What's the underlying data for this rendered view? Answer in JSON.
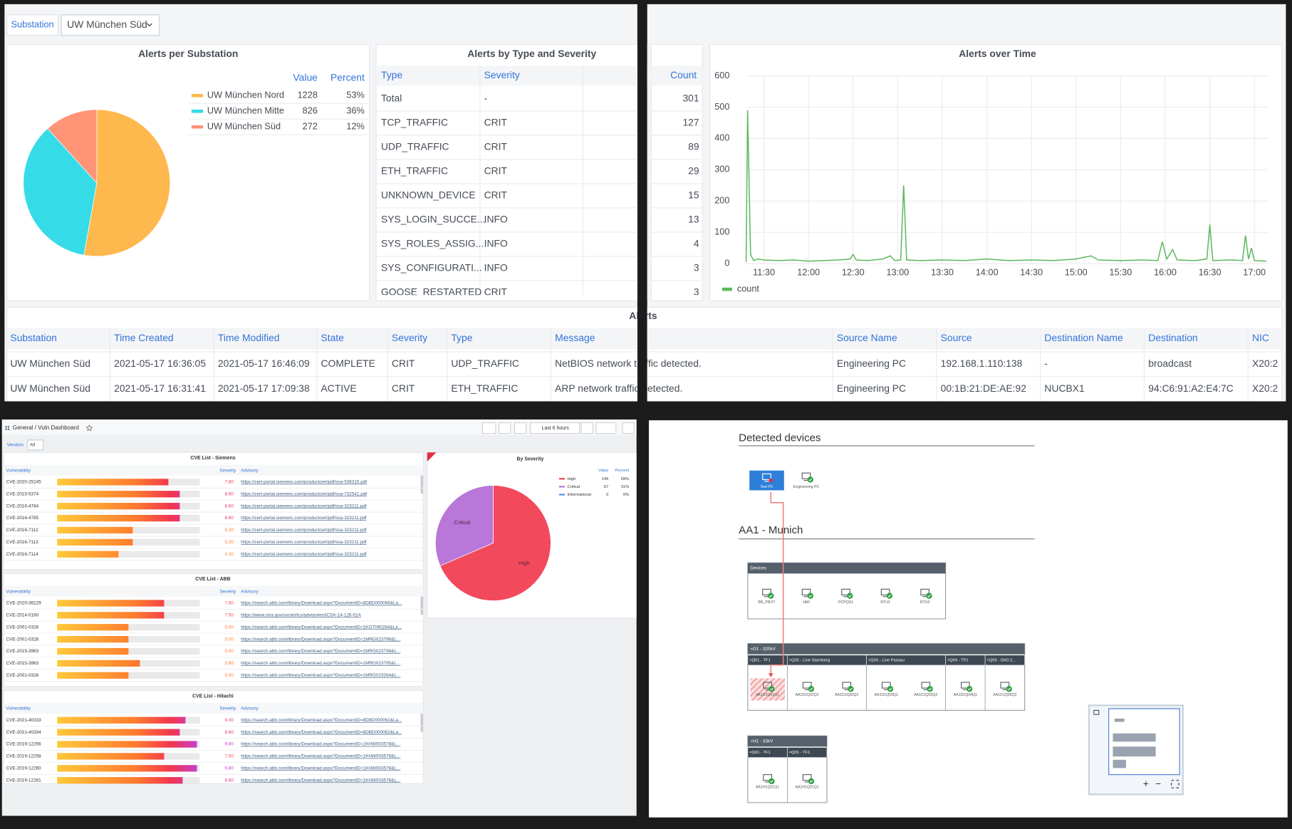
{
  "alerts_screen": {
    "filter": {
      "label": "Substation",
      "value": "UW München Süd"
    },
    "substation_pie": {
      "type": "pie",
      "title": "Alerts per Substation",
      "columns": [
        "Value",
        "Percent"
      ],
      "slices": [
        {
          "name": "UW München Nord",
          "value": 1228,
          "percent": "53%",
          "color": "#ffb84d"
        },
        {
          "name": "UW München Mitte",
          "value": 826,
          "percent": "36%",
          "color": "#36dbe8"
        },
        {
          "name": "UW München Süd",
          "value": 272,
          "percent": "12%",
          "color": "#ff9477"
        }
      ]
    },
    "type_table": {
      "title": "Alerts by Type and Severity",
      "columns": [
        "Type",
        "Severity",
        "Count"
      ],
      "rows": [
        [
          "Total",
          "-",
          301
        ],
        [
          "TCP_TRAFFIC",
          "CRIT",
          127
        ],
        [
          "UDP_TRAFFIC",
          "CRIT",
          89
        ],
        [
          "ETH_TRAFFIC",
          "CRIT",
          29
        ],
        [
          "UNKNOWN_DEVICE",
          "CRIT",
          15
        ],
        [
          "SYS_LOGIN_SUCCE...",
          "INFO",
          13
        ],
        [
          "SYS_ROLES_ASSIG...",
          "INFO",
          4
        ],
        [
          "SYS_CONFIGURATI...",
          "INFO",
          3
        ],
        [
          "GOOSE_RESTARTED",
          "CRIT",
          3
        ]
      ]
    },
    "time_chart": {
      "type": "line",
      "title": "Alerts over Time",
      "x": [
        "11:18",
        "11:19",
        "11:21",
        "11:23",
        "11:26",
        "11:30",
        "11:40",
        "11:50",
        "12:00",
        "12:10",
        "12:20",
        "12:28",
        "12:30",
        "12:32",
        "12:40",
        "12:50",
        "12:55",
        "12:58",
        "13:02",
        "13:04",
        "13:06",
        "13:15",
        "13:30",
        "13:45",
        "14:00",
        "14:15",
        "14:30",
        "14:45",
        "15:00",
        "15:10",
        "15:15",
        "15:30",
        "15:45",
        "15:55",
        "15:58",
        "16:01",
        "16:05",
        "16:08",
        "16:20",
        "16:28",
        "16:30",
        "16:32",
        "16:45",
        "16:52",
        "16:54",
        "16:56",
        "16:58",
        "17:00",
        "17:08"
      ],
      "series": [
        {
          "name": "count",
          "color": "#5cb85c",
          "values": [
            5,
            490,
            30,
            10,
            15,
            12,
            10,
            12,
            8,
            10,
            12,
            15,
            30,
            12,
            10,
            15,
            25,
            10,
            12,
            250,
            12,
            10,
            12,
            10,
            15,
            10,
            12,
            10,
            15,
            25,
            12,
            10,
            12,
            10,
            70,
            15,
            45,
            12,
            10,
            15,
            125,
            10,
            12,
            10,
            90,
            15,
            50,
            10,
            8
          ]
        }
      ],
      "xlim": [
        "11:18",
        "17:09"
      ],
      "xticks": [
        "11:30",
        "12:00",
        "12:30",
        "13:00",
        "13:30",
        "14:00",
        "14:30",
        "15:00",
        "15:30",
        "16:00",
        "16:30",
        "17:00"
      ],
      "ylim": [
        0,
        600
      ],
      "yticks": [
        0,
        100,
        200,
        300,
        400,
        500,
        600
      ],
      "grid": true
    },
    "alerts_table": {
      "title": "Alerts",
      "columns": [
        "Substation",
        "Time Created",
        "Time Modified",
        "State",
        "Severity",
        "Type",
        "Message",
        "Source Name",
        "Source",
        "Destination Name",
        "Destination",
        "NIC"
      ],
      "rows": [
        [
          "UW München Süd",
          "2021-05-17 16:36:05",
          "2021-05-17 16:46:09",
          "COMPLETE",
          "CRIT",
          "UDP_TRAFFIC",
          "NetBIOS network traffic detected.",
          "Engineering PC",
          "192.168.1.110:138",
          "-",
          "broadcast",
          "X20:2"
        ],
        [
          "UW München Süd",
          "2021-05-17 16:31:41",
          "2021-05-17 17:09:38",
          "ACTIVE",
          "CRIT",
          "ETH_TRAFFIC",
          "ARP network traffic detected.",
          "Engineering PC",
          "00:1B:21:DE:AE:92",
          "NUCBX1",
          "94:C6:91:A2:E4:7C",
          "X20:2"
        ]
      ]
    }
  },
  "vuln_screen": {
    "breadcrumb": "General / Vuln Dashboard",
    "time_range": "Last 6 hours",
    "filter": {
      "label": "Vendors",
      "value": "All"
    },
    "gauge_lim": [
      0,
      10
    ],
    "cve_lists": [
      {
        "title": "CVE List - Siemens",
        "columns": [
          "Vulnerability",
          "Severity",
          "Advisory"
        ],
        "rows": [
          {
            "cve": "CVE-2020-25245",
            "severity": 7.8,
            "severity_label": "7.80",
            "advisory": "https://cert-portal.siemens.com/productcert/pdf/ssa-536315.pdf"
          },
          {
            "cve": "CVE-2015-5374",
            "severity": 8.6,
            "severity_label": "8.60",
            "advisory": "https://cert-portal.siemens.com/productcert/pdf/ssa-732541.pdf"
          },
          {
            "cve": "CVE-2016-4784",
            "severity": 8.6,
            "severity_label": "8.60",
            "advisory": "https://cert-portal.siemens.com/productcert/pdf/ssa-323211.pdf"
          },
          {
            "cve": "CVE-2016-4785",
            "severity": 8.6,
            "severity_label": "8.60",
            "advisory": "https://cert-portal.siemens.com/productcert/pdf/ssa-323211.pdf"
          },
          {
            "cve": "CVE-2016-7112",
            "severity": 5.3,
            "severity_label": "5.30",
            "advisory": "https://cert-portal.siemens.com/productcert/pdf/ssa-323211.pdf"
          },
          {
            "cve": "CVE-2016-7113",
            "severity": 5.3,
            "severity_label": "5.30",
            "advisory": "https://cert-portal.siemens.com/productcert/pdf/ssa-323211.pdf"
          },
          {
            "cve": "CVE-2016-7114",
            "severity": 4.3,
            "severity_label": "4.30",
            "advisory": "https://cert-portal.siemens.com/productcert/pdf/ssa-323211.pdf"
          }
        ]
      },
      {
        "title": "CVE List - ABB",
        "columns": [
          "Vulnerability",
          "Severity",
          "Advisory"
        ],
        "rows": [
          {
            "cve": "CVE-2020-36229",
            "severity": 7.5,
            "severity_label": "7.50",
            "advisory": "https://search.abb.com/library/Download.aspx?DocumentID=8DBD000066&La..."
          },
          {
            "cve": "CVE-2014-0160",
            "severity": 7.5,
            "severity_label": "7.50",
            "advisory": "https://www.cisa.gov/uscert/ics/advisories/ICSA-14-126-01A"
          },
          {
            "cve": "CVE-2001-0328",
            "severity": 5.0,
            "severity_label": "5.00",
            "advisory": "https://search.abb.com/library/Download.aspx?DocumentID=1KGT090284&La..."
          },
          {
            "cve": "CVE-2001-0328",
            "severity": 5.0,
            "severity_label": "5.00",
            "advisory": "https://search.abb.com/library/Download.aspx?DocumentID=1MRG023796&L..."
          },
          {
            "cve": "CVE-2015-3963",
            "severity": 5.0,
            "severity_label": "5.00",
            "advisory": "https://search.abb.com/library/Download.aspx?DocumentID=1MRG023798&L..."
          },
          {
            "cve": "CVE-2015-3963",
            "severity": 5.8,
            "severity_label": "5.80",
            "advisory": "https://search.abb.com/library/Download.aspx?DocumentID=1MRG023795&L..."
          },
          {
            "cve": "CVE-2001-0328",
            "severity": 5.0,
            "severity_label": "5.00",
            "advisory": "https://search.abb.com/library/Download.aspx?DocumentID=1MRG023264&L..."
          }
        ]
      },
      {
        "title": "CVE List - Hitachi",
        "columns": [
          "Vulnerability",
          "Severity",
          "Advisory"
        ],
        "rows": [
          {
            "cve": "CVE-2021-40333",
            "severity": 9.0,
            "severity_label": "9.00",
            "advisory": "https://search.abb.com/library/Download.aspx?DocumentID=8DBD000062&La..."
          },
          {
            "cve": "CVE-2021-40334",
            "severity": 8.6,
            "severity_label": "8.60",
            "advisory": "https://search.abb.com/library/Download.aspx?DocumentID=8DBD000062&La..."
          },
          {
            "cve": "CVE-2019-12256",
            "severity": 9.8,
            "severity_label": "9.80",
            "advisory": "https://search.abb.com/library/Download.aspx?DocumentID=1KHW003578&L..."
          },
          {
            "cve": "CVE-2019-12258",
            "severity": 7.5,
            "severity_label": "7.50",
            "advisory": "https://search.abb.com/library/Download.aspx?DocumentID=1KHW003578&L..."
          },
          {
            "cve": "CVE-2019-12260",
            "severity": 9.8,
            "severity_label": "9.80",
            "advisory": "https://search.abb.com/library/Download.aspx?DocumentID=1KHW003578&L..."
          },
          {
            "cve": "CVE-2019-12261",
            "severity": 8.8,
            "severity_label": "8.80",
            "advisory": "https://search.abb.com/library/Download.aspx?DocumentID=1KHW003578&L..."
          }
        ]
      }
    ],
    "severity_pie": {
      "type": "pie",
      "title": "By Severity",
      "columns": [
        "Value",
        "Percent"
      ],
      "slices": [
        {
          "name": "High",
          "value": 146,
          "percent": "69%",
          "color": "#f2495c"
        },
        {
          "name": "Critical",
          "value": 67,
          "percent": "31%",
          "color": "#b877d9"
        },
        {
          "name": "Informational",
          "value": 0,
          "percent": "0%",
          "color": "#5794f2"
        }
      ]
    }
  },
  "topology_screen": {
    "detected_title": "Detected devices",
    "detected": [
      "Test PC",
      "Engineering PC"
    ],
    "site_title": "AA1 - Munich",
    "devices_group": {
      "title": "Devices",
      "items": [
        "BB_PROT",
        "HMI",
        "PCPQS1",
        "RTU1",
        "RTU2"
      ]
    },
    "voltage_levels": [
      {
        "title": "=D1 - 320kV",
        "bays": [
          {
            "title": "=Q01 - TF1",
            "items": [
              "AA1D1Q01Q1"
            ]
          },
          {
            "title": "=Q02 - Line Starnberg",
            "items": [
              "AA1D1Q02Q1",
              "AA1D1Q02Q2"
            ]
          },
          {
            "title": "=Q03 - Line Passau",
            "items": [
              "AA1D1Q03Q1",
              "AA1D1Q03Q2"
            ]
          },
          {
            "title": "=Q04 - TF1",
            "items": [
              "AA1D1Q04Q1"
            ]
          },
          {
            "title": "=Q05 - ISIO 2...",
            "items": [
              "AA1D1Q05Q2"
            ]
          }
        ]
      },
      {
        "title": "=H1 - 33kV",
        "bays": [
          {
            "title": "=Q01 - TF1",
            "items": [
              "AA1H1Q01Q1"
            ]
          },
          {
            "title": "=Q01 - TF1",
            "items": [
              "AA1H1Q01Q1"
            ]
          }
        ]
      }
    ],
    "minimap": {
      "zoom_in": "+",
      "zoom_out": "−"
    }
  }
}
